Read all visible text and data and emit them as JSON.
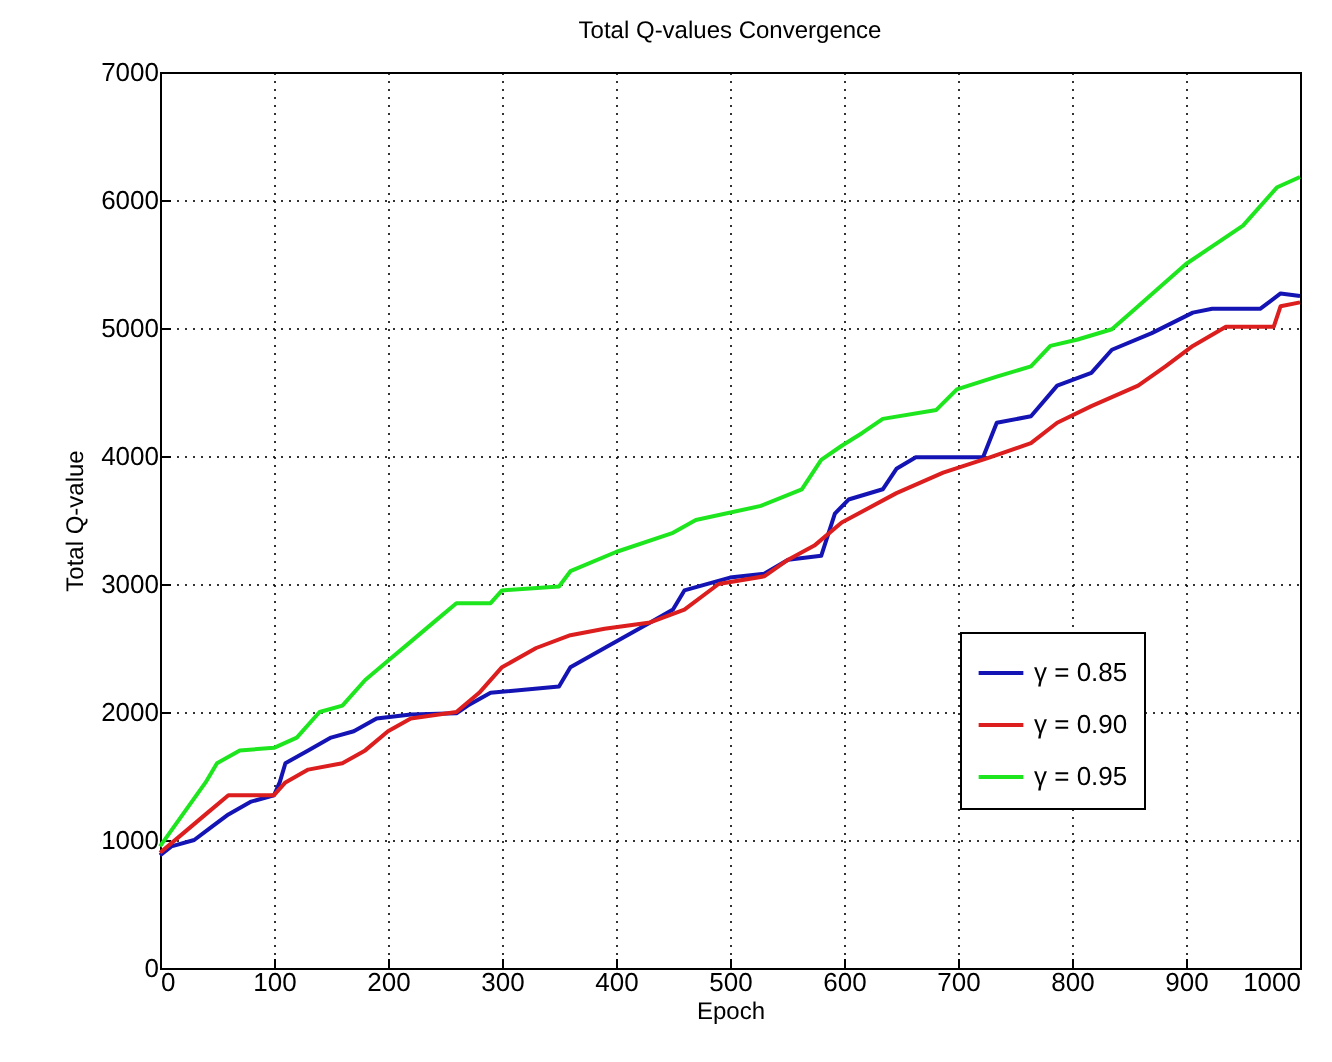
{
  "chart_data": {
    "type": "line",
    "title": "Total Q-values Convergence",
    "xlabel": "Epoch",
    "ylabel": "Total Q-value",
    "xlim": [
      0,
      1000
    ],
    "xticks": [
      0,
      100,
      200,
      300,
      400,
      500,
      600,
      700,
      800,
      900,
      1000
    ],
    "ylim": [
      0,
      7000
    ],
    "yticks": [
      0,
      1000,
      2000,
      3000,
      4000,
      5000,
      6000,
      7000
    ],
    "grid": true,
    "legend": "bottom right",
    "line_style": "solid",
    "marker": "none",
    "series": [
      {
        "name": "γ = 0.85",
        "color": "#1414b4",
        "x": [
          0,
          10,
          30,
          45,
          60,
          80,
          100,
          105,
          110,
          130,
          150,
          170,
          190,
          220,
          260,
          270,
          290,
          350,
          360,
          390,
          410,
          430,
          450,
          460,
          500,
          530,
          551,
          580,
          592,
          604,
          634,
          646,
          663,
          722,
          734,
          764,
          787,
          817,
          835,
          870,
          906,
          923,
          965,
          983,
          1000
        ],
        "values": [
          880,
          950,
          1000,
          1100,
          1200,
          1300,
          1350,
          1450,
          1600,
          1700,
          1800,
          1850,
          1950,
          1980,
          1990,
          2050,
          2150,
          2200,
          2350,
          2500,
          2600,
          2700,
          2800,
          2950,
          3050,
          3080,
          3190,
          3220,
          3550,
          3660,
          3740,
          3900,
          3990,
          3990,
          4260,
          4310,
          4550,
          4650,
          4830,
          4960,
          5120,
          5150,
          5150,
          5270,
          5250
        ]
      },
      {
        "name": "γ = 0.90",
        "color": "#dc1e1e",
        "x": [
          0,
          20,
          40,
          60,
          100,
          110,
          130,
          160,
          180,
          200,
          220,
          260,
          280,
          300,
          330,
          360,
          390,
          430,
          460,
          490,
          530,
          551,
          574,
          598,
          646,
          687,
          728,
          764,
          787,
          817,
          858,
          882,
          906,
          935,
          977,
          983,
          1000
        ],
        "values": [
          900,
          1050,
          1200,
          1350,
          1350,
          1450,
          1550,
          1600,
          1700,
          1850,
          1950,
          2000,
          2150,
          2350,
          2500,
          2600,
          2650,
          2700,
          2800,
          3000,
          3060,
          3190,
          3300,
          3480,
          3710,
          3870,
          3990,
          4100,
          4260,
          4390,
          4550,
          4700,
          4860,
          5010,
          5010,
          5170,
          5200
        ]
      },
      {
        "name": "γ = 0.95",
        "color": "#1ee61e",
        "x": [
          0,
          20,
          40,
          50,
          70,
          100,
          120,
          140,
          160,
          180,
          200,
          220,
          240,
          260,
          290,
          300,
          350,
          360,
          400,
          450,
          470,
          527,
          563,
          580,
          598,
          616,
          634,
          681,
          699,
          734,
          764,
          781,
          805,
          835,
          858,
          900,
          950,
          980,
          1000
        ],
        "values": [
          950,
          1200,
          1450,
          1600,
          1700,
          1720,
          1800,
          2000,
          2050,
          2250,
          2400,
          2550,
          2700,
          2850,
          2850,
          2950,
          2980,
          3100,
          3250,
          3400,
          3500,
          3610,
          3740,
          3970,
          4080,
          4180,
          4290,
          4360,
          4520,
          4620,
          4700,
          4860,
          4910,
          4990,
          5170,
          5500,
          5800,
          6100,
          6180
        ]
      }
    ]
  }
}
